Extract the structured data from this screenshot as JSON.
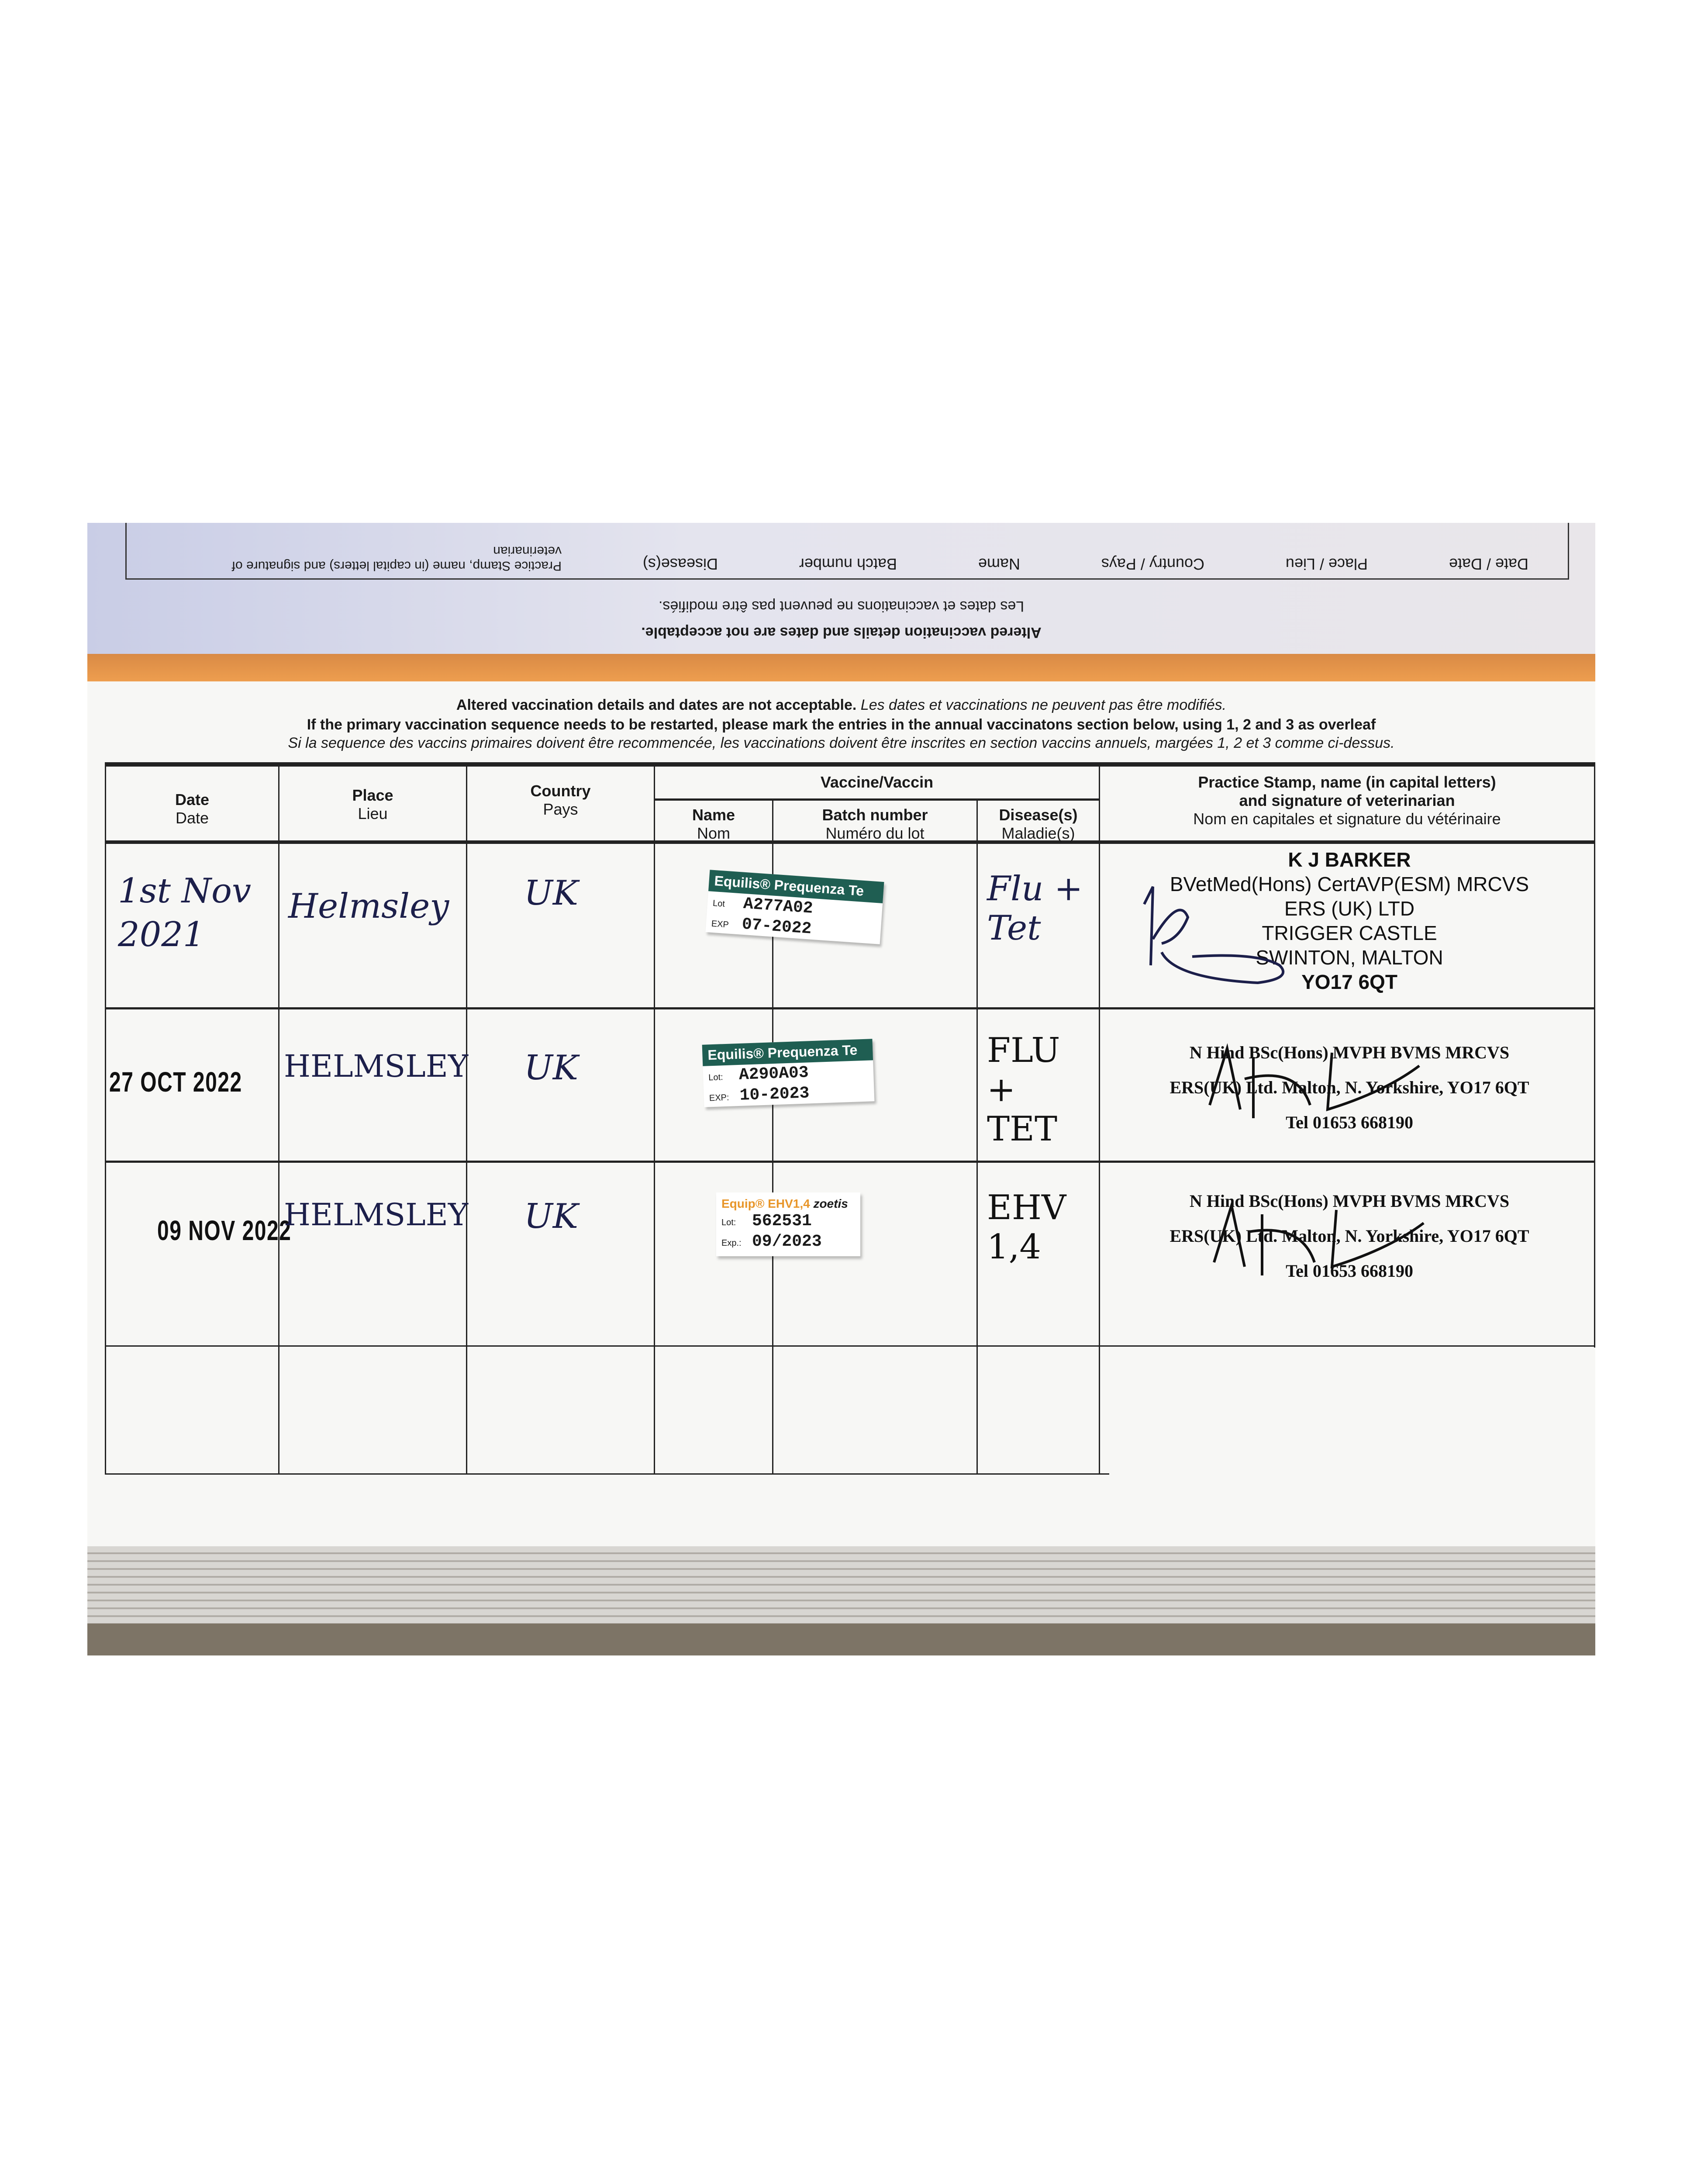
{
  "flipped_page": {
    "headers": [
      "Date / Date",
      "Place / Lieu",
      "Country / Pays",
      "Vaccine/Vaccin",
      "Name",
      "Batch number",
      "Disease(s)",
      "Practice Stamp, name (in capital letters) and signature of veterinarian"
    ],
    "note_en": "Altered vaccination details and dates are not acceptable.",
    "note_fr": "Les dates et vaccinations ne peuvent pas être modifiés."
  },
  "notes": {
    "line1_en": "Altered vaccination details and dates are not acceptable.",
    "line1_fr": "Les dates et vaccinations ne peuvent pas être modifiés.",
    "line2": "If the primary vaccination sequence needs to be restarted, please mark the entries in the annual vaccinatons section below, using 1, 2 and 3 as overleaf",
    "line3": "Si la sequence des vaccins primaires doivent être recommencée, les vaccinations doivent être inscrites en section vaccins annuels, margées 1, 2 et 3 comme ci-dessus."
  },
  "table": {
    "headers": {
      "date": "Date",
      "date_fr": "Date",
      "place": "Place",
      "place_fr": "Lieu",
      "country": "Country",
      "country_fr": "Pays",
      "vaccine": "Vaccine/Vaccin",
      "name": "Name",
      "name_fr": "Nom",
      "batch": "Batch number",
      "batch_fr": "Numéro du lot",
      "disease": "Disease(s)",
      "disease_fr": "Maladie(s)",
      "stamp1": "Practice Stamp, name (in capital letters)",
      "stamp2": "and signature of veterinarian",
      "stamp_fr": "Nom en capitales et signature du vétérinaire"
    },
    "rows": [
      {
        "date": "1st Nov 2021",
        "place": "Helmsley",
        "country": "UK",
        "sticker": {
          "name": "Equilis® Prequenza Te",
          "lot_label": "Lot",
          "lot": "A277A02",
          "exp_label": "EXP",
          "exp": "07-2022"
        },
        "disease": "Flu + Tet",
        "stamp": [
          "K J BARKER",
          "BVetMed(Hons) CertAVP(ESM) MRCVS",
          "ERS (UK) LTD",
          "TRIGGER CASTLE",
          "SWINTON, MALTON",
          "YO17 6QT"
        ]
      },
      {
        "date": "27 OCT 2022",
        "place": "HELMSLEY",
        "country": "UK",
        "sticker": {
          "name": "Equilis® Prequenza Te",
          "lot_label": "Lot:",
          "lot": "A290A03",
          "exp_label": "EXP:",
          "exp": "10-2023"
        },
        "disease": "FLU + TET",
        "stamp": [
          "N Hind BSc(Hons) MVPH BVMS MRCVS",
          "ERS(UK) Ltd. Malton, N. Yorkshire, YO17 6QT",
          "Tel 01653 668190"
        ]
      },
      {
        "date": "09 NOV 2022",
        "place": "HELMSLEY",
        "country": "UK",
        "sticker": {
          "brand": "Equip® EHV1,4",
          "maker": "zoetis",
          "lot_label": "Lot:",
          "lot": "562531",
          "exp_label": "Exp.:",
          "exp": "09/2023"
        },
        "disease": "EHV 1,4",
        "stamp": [
          "N Hind BSc(Hons) MVPH BVMS MRCVS",
          "ERS(UK) Ltd. Malton, N. Yorkshire, YO17 6QT",
          "Tel 01653 668190"
        ]
      }
    ]
  },
  "colors": {
    "sticker_green": "#1f5e52",
    "equip_orange": "#e8962a",
    "ink_blue": "#1c1f4a",
    "stamp_black": "#111111"
  }
}
